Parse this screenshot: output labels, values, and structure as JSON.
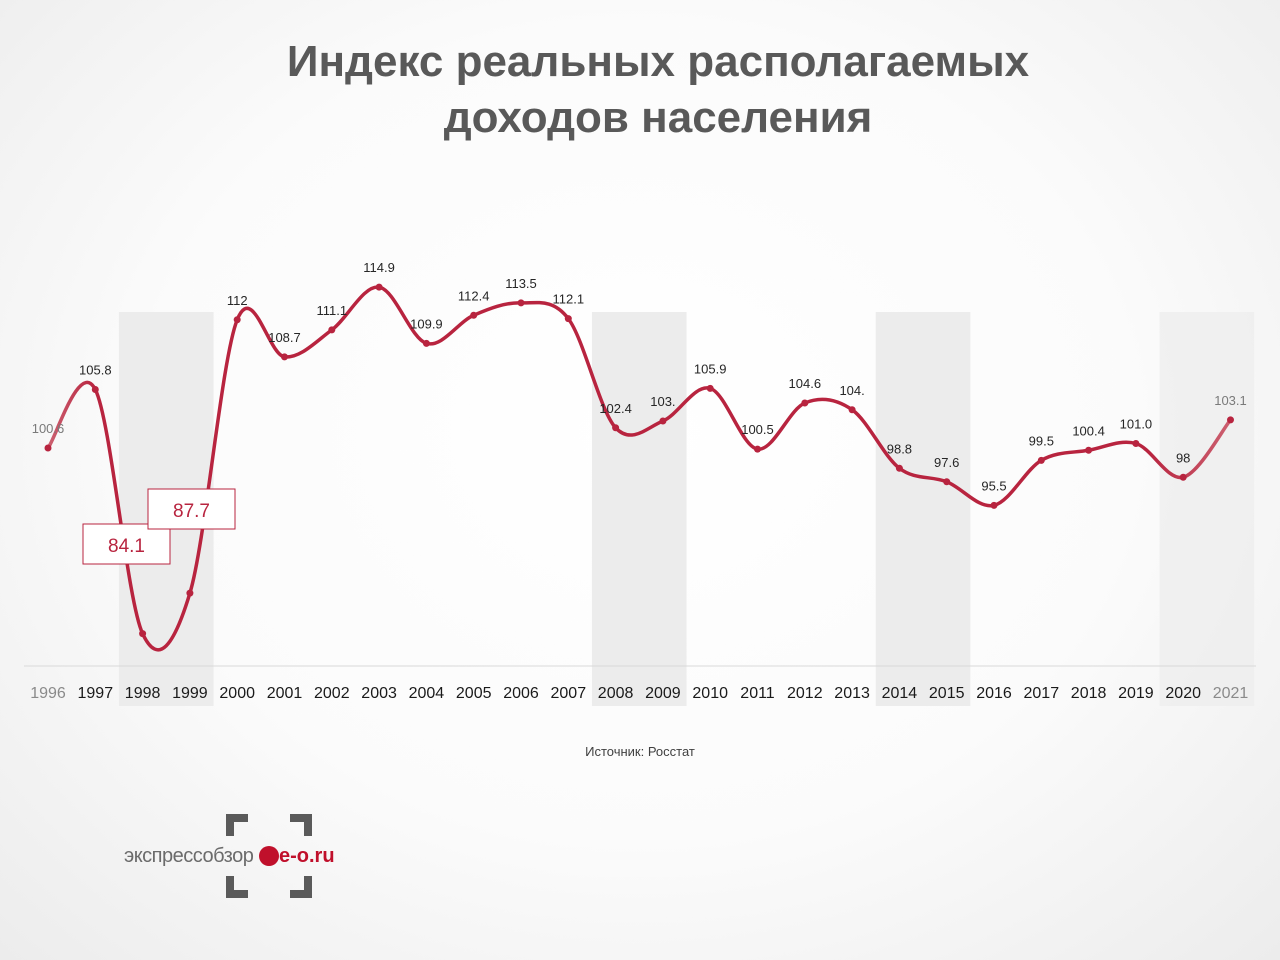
{
  "page": {
    "title_line1": "Индекс реальных располагаемых",
    "title_line2": "доходов населения",
    "source": "Источник: Росстат",
    "logo_text_main": "экспрессобзор",
    "logo_text_site": "e-o.ru"
  },
  "colors": {
    "line": "#b8243f",
    "line_faded": "#cc6070",
    "shade": "#ececec",
    "axis_text": "#1a1a1a",
    "axis_text_faded": "#8a8a8a",
    "callout": "#b8243f"
  },
  "chart_data": {
    "type": "line",
    "title": "Индекс реальных располагаемых доходов населения",
    "xlabel": "",
    "ylabel": "",
    "categories": [
      "1996",
      "1997",
      "1998",
      "1999",
      "2000",
      "2001",
      "2002",
      "2003",
      "2004",
      "2005",
      "2006",
      "2007",
      "2008",
      "2009",
      "2010",
      "2011",
      "2012",
      "2013",
      "2014",
      "2015",
      "2016",
      "2017",
      "2018",
      "2019",
      "2020",
      "2021"
    ],
    "values": [
      100.6,
      105.8,
      84.1,
      87.7,
      112,
      108.7,
      111.1,
      114.9,
      109.9,
      112.4,
      113.5,
      112.1,
      102.4,
      103.0,
      105.9,
      100.5,
      104.6,
      104.0,
      98.8,
      97.6,
      95.5,
      99.5,
      100.4,
      101.0,
      98,
      103.1
    ],
    "data_labels": [
      "100.6",
      "105.8",
      "84.1",
      "87.7",
      "112",
      "108.7",
      "111.1",
      "114.9",
      "109.9",
      "112.4",
      "113.5",
      "112.1",
      "102.4",
      "103.",
      "105.9",
      "100.5",
      "104.6",
      "104.",
      "98.8",
      "97.6",
      "95.5",
      "99.5",
      "100.4",
      "101.0",
      "98",
      "103.1"
    ],
    "highlighted_labels": [
      "84.1",
      "87.7"
    ],
    "shaded_periods": [
      [
        "1998",
        "1999"
      ],
      [
        "2008",
        "2009"
      ],
      [
        "2014",
        "2015"
      ],
      [
        "2020",
        "2021"
      ]
    ],
    "grid": false,
    "legend": "none"
  }
}
